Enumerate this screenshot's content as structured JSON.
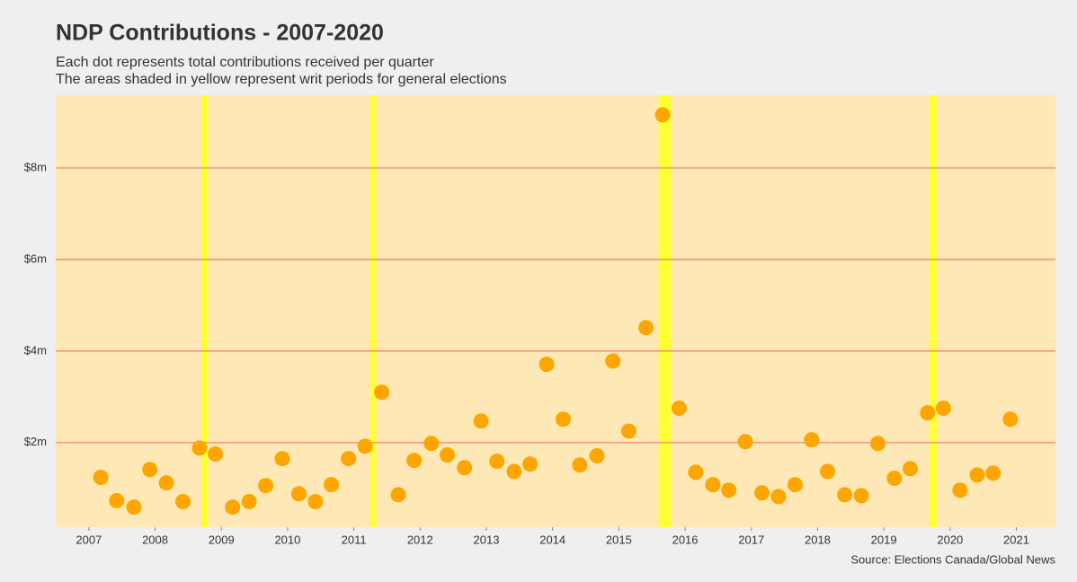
{
  "chart_data": {
    "type": "scatter",
    "title": "NDP Contributions - 2007-2020",
    "subtitle": [
      "Each dot represents total contributions received per quarter",
      "The areas shaded in yellow represent writ periods for general elections"
    ],
    "source": "Source: Elections Canada/Global News",
    "x": [
      2007.18,
      2007.42,
      2007.68,
      2007.92,
      2008.17,
      2008.42,
      2008.67,
      2008.91,
      2009.17,
      2009.42,
      2009.67,
      2009.92,
      2010.17,
      2010.42,
      2010.66,
      2010.92,
      2011.17,
      2011.42,
      2011.67,
      2011.91,
      2012.17,
      2012.41,
      2012.67,
      2012.92,
      2013.16,
      2013.42,
      2013.66,
      2013.91,
      2014.16,
      2014.41,
      2014.67,
      2014.91,
      2015.15,
      2015.41,
      2015.66,
      2015.91,
      2016.16,
      2016.42,
      2016.66,
      2016.91,
      2017.16,
      2017.41,
      2017.66,
      2017.91,
      2018.15,
      2018.41,
      2018.66,
      2018.91,
      2019.16,
      2019.4,
      2019.66,
      2019.9,
      2020.15,
      2020.41,
      2020.65,
      2020.91
    ],
    "values": [
      1.24,
      0.73,
      0.59,
      1.41,
      1.12,
      0.71,
      1.88,
      1.75,
      0.59,
      0.71,
      1.06,
      1.65,
      0.88,
      0.71,
      1.08,
      1.65,
      1.92,
      3.1,
      0.86,
      1.61,
      1.98,
      1.73,
      1.45,
      2.47,
      1.59,
      1.37,
      1.53,
      3.71,
      2.51,
      1.51,
      1.71,
      3.78,
      2.25,
      4.51,
      9.16,
      2.75,
      1.35,
      1.08,
      0.96,
      2.02,
      0.9,
      0.82,
      1.08,
      2.06,
      1.37,
      0.86,
      0.84,
      1.98,
      1.22,
      1.43,
      2.65,
      2.75,
      0.96,
      1.29,
      1.33,
      2.51
    ],
    "color": "#ffa500",
    "shaded_periods": [
      [
        2008.7,
        2008.8
      ],
      [
        2011.25,
        2011.34
      ],
      [
        2015.6,
        2015.79
      ],
      [
        2019.69,
        2019.8
      ]
    ],
    "shaded_color": "#ffff33",
    "background": "#fee8b5",
    "grid_color": "#f4866a",
    "xlim": [
      2006.5,
      2021.59
    ],
    "ylim": [
      0.15,
      9.59
    ],
    "xticks": [
      2007,
      2008,
      2009,
      2010,
      2011,
      2012,
      2013,
      2014,
      2015,
      2016,
      2017,
      2018,
      2019,
      2020,
      2021
    ],
    "yticks": [
      {
        "value": 2,
        "label": "$2m"
      },
      {
        "value": 4,
        "label": "$4m"
      },
      {
        "value": 6,
        "label": "$6m"
      },
      {
        "value": 8,
        "label": "$8m"
      }
    ],
    "grid": true
  }
}
